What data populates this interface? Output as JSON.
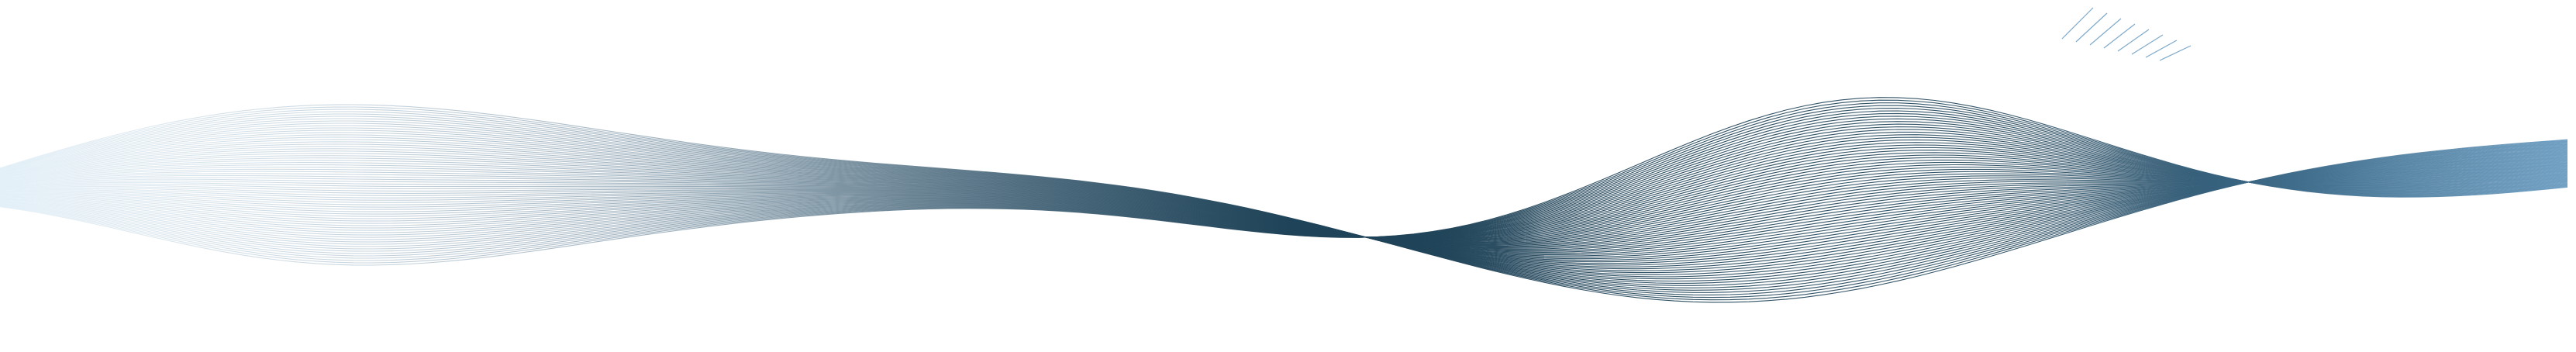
{
  "figure": {
    "background": "#ffffff",
    "subject": "abstract-line-wave-ribbon",
    "palette": {
      "light_edge": "#d6e9f5",
      "mid_grey": "#9fb3c2",
      "dark_center": "#1f4358",
      "bright_blue": "#5f95bd"
    }
  }
}
